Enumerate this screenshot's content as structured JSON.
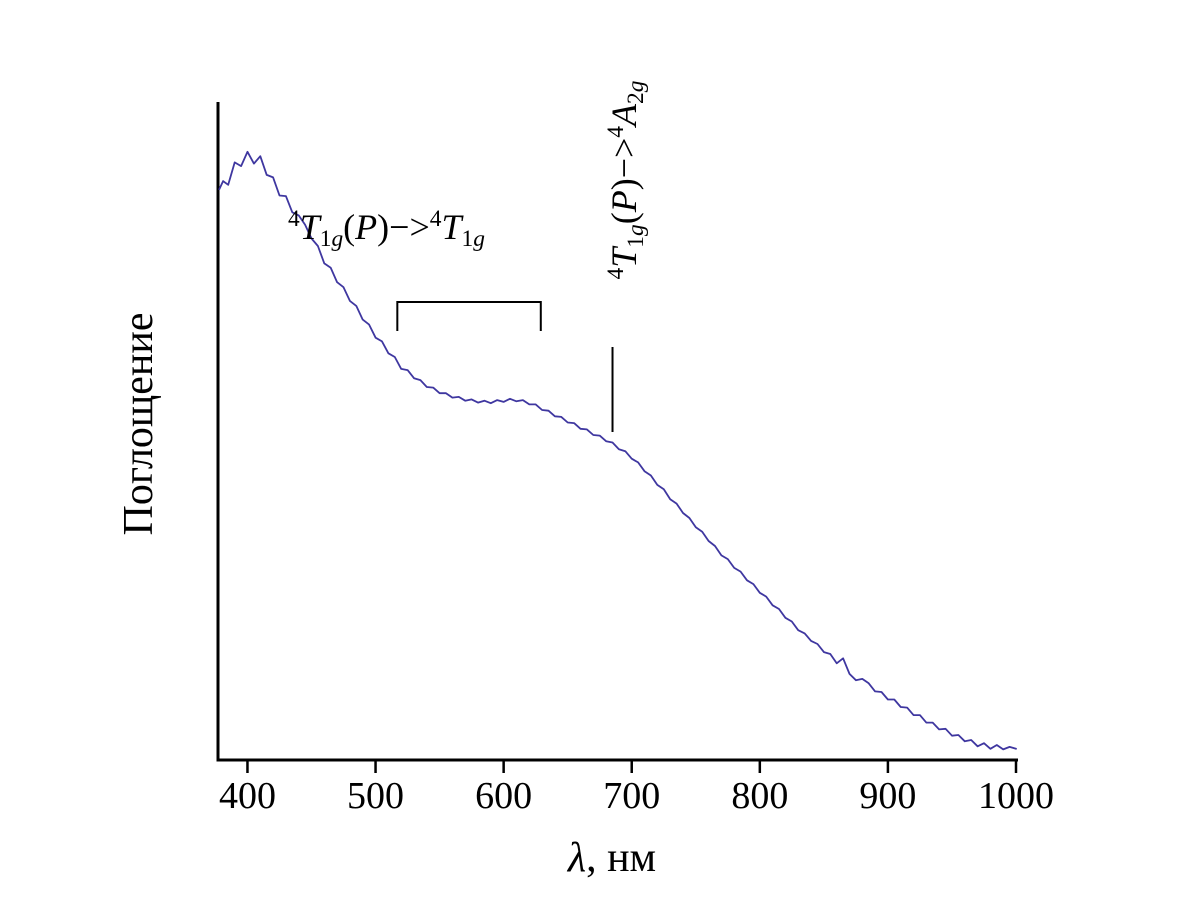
{
  "chart_data": {
    "type": "line",
    "title": "",
    "xlabel": "λ, нм",
    "xlabel_rich": [
      {
        "t": "λ",
        "s": "i"
      },
      {
        "t": ", нм",
        "s": "n"
      }
    ],
    "ylabel": "Поглощение",
    "xlim": [
      377,
      1000
    ],
    "ylim": [
      0,
      1.05
    ],
    "x_ticks": [
      400,
      500,
      600,
      700,
      800,
      900,
      1000
    ],
    "y_ticks": [],
    "grid": false,
    "legend": false,
    "line_color": "#3f37a0",
    "axis_color": "#000000",
    "series": [
      {
        "name": "absorption-spectrum",
        "x": [
          378,
          381,
          385,
          390,
          395,
          400,
          405,
          410,
          415,
          420,
          425,
          430,
          435,
          440,
          445,
          450,
          455,
          460,
          465,
          470,
          475,
          480,
          485,
          490,
          495,
          500,
          505,
          510,
          515,
          520,
          525,
          530,
          535,
          540,
          545,
          550,
          555,
          560,
          565,
          570,
          575,
          580,
          585,
          590,
          595,
          600,
          605,
          610,
          615,
          620,
          625,
          630,
          635,
          640,
          645,
          650,
          655,
          660,
          665,
          670,
          675,
          680,
          685,
          690,
          695,
          700,
          705,
          710,
          715,
          720,
          725,
          730,
          735,
          740,
          745,
          750,
          755,
          760,
          765,
          770,
          775,
          780,
          785,
          790,
          795,
          800,
          805,
          810,
          815,
          820,
          825,
          830,
          835,
          840,
          845,
          850,
          855,
          860,
          865,
          870,
          875,
          880,
          885,
          890,
          895,
          900,
          905,
          910,
          915,
          920,
          925,
          930,
          935,
          940,
          945,
          950,
          955,
          960,
          965,
          970,
          975,
          980,
          985,
          990,
          995,
          1000
        ],
        "y": [
          0.915,
          0.928,
          0.922,
          0.958,
          0.952,
          0.975,
          0.956,
          0.968,
          0.938,
          0.934,
          0.905,
          0.904,
          0.878,
          0.873,
          0.858,
          0.836,
          0.824,
          0.796,
          0.789,
          0.766,
          0.758,
          0.736,
          0.728,
          0.706,
          0.698,
          0.677,
          0.671,
          0.652,
          0.646,
          0.627,
          0.625,
          0.612,
          0.609,
          0.598,
          0.597,
          0.588,
          0.588,
          0.581,
          0.582,
          0.576,
          0.578,
          0.573,
          0.576,
          0.572,
          0.577,
          0.574,
          0.579,
          0.575,
          0.577,
          0.57,
          0.57,
          0.561,
          0.56,
          0.551,
          0.55,
          0.541,
          0.54,
          0.531,
          0.53,
          0.521,
          0.52,
          0.511,
          0.509,
          0.498,
          0.495,
          0.483,
          0.477,
          0.463,
          0.456,
          0.441,
          0.434,
          0.418,
          0.411,
          0.396,
          0.388,
          0.373,
          0.366,
          0.351,
          0.343,
          0.328,
          0.322,
          0.308,
          0.302,
          0.288,
          0.282,
          0.268,
          0.262,
          0.248,
          0.242,
          0.228,
          0.222,
          0.208,
          0.203,
          0.191,
          0.186,
          0.173,
          0.17,
          0.155,
          0.163,
          0.138,
          0.128,
          0.13,
          0.123,
          0.11,
          0.109,
          0.097,
          0.097,
          0.085,
          0.084,
          0.072,
          0.072,
          0.06,
          0.06,
          0.049,
          0.05,
          0.039,
          0.04,
          0.03,
          0.032,
          0.022,
          0.027,
          0.018,
          0.024,
          0.017,
          0.021,
          0.018
        ]
      }
    ],
    "annotations": [
      {
        "id": "band-t1g-p-to-t1g",
        "text": "4T1g(P)->4T1g",
        "orientation": "horizontal",
        "bracket_nm": [
          517,
          629
        ],
        "rich": [
          {
            "t": "4",
            "s": "sup"
          },
          {
            "t": "T",
            "s": "i"
          },
          {
            "t": "1",
            "s": "sub"
          },
          {
            "t": "g",
            "s": "subi"
          },
          {
            "t": "(",
            "s": "n"
          },
          {
            "t": "P",
            "s": "i"
          },
          {
            "t": ")",
            "s": "n"
          },
          {
            "t": "−>",
            "s": "n"
          },
          {
            "t": "4",
            "s": "sup"
          },
          {
            "t": "T",
            "s": "i"
          },
          {
            "t": "1",
            "s": "sub"
          },
          {
            "t": "g",
            "s": "subi"
          }
        ]
      },
      {
        "id": "band-t1g-p-to-a2g",
        "text": "4T1g(P)->4A2g",
        "orientation": "vertical",
        "pointer_nm": 685,
        "rich": [
          {
            "t": "4",
            "s": "sup"
          },
          {
            "t": "T",
            "s": "i"
          },
          {
            "t": "1",
            "s": "sub"
          },
          {
            "t": "g",
            "s": "subi"
          },
          {
            "t": "(",
            "s": "n"
          },
          {
            "t": "P",
            "s": "i"
          },
          {
            "t": ")",
            "s": "n"
          },
          {
            "t": "−>",
            "s": "n"
          },
          {
            "t": "4",
            "s": "sup"
          },
          {
            "t": "A",
            "s": "i"
          },
          {
            "t": "2",
            "s": "sub"
          },
          {
            "t": "g",
            "s": "subi"
          }
        ]
      }
    ]
  }
}
